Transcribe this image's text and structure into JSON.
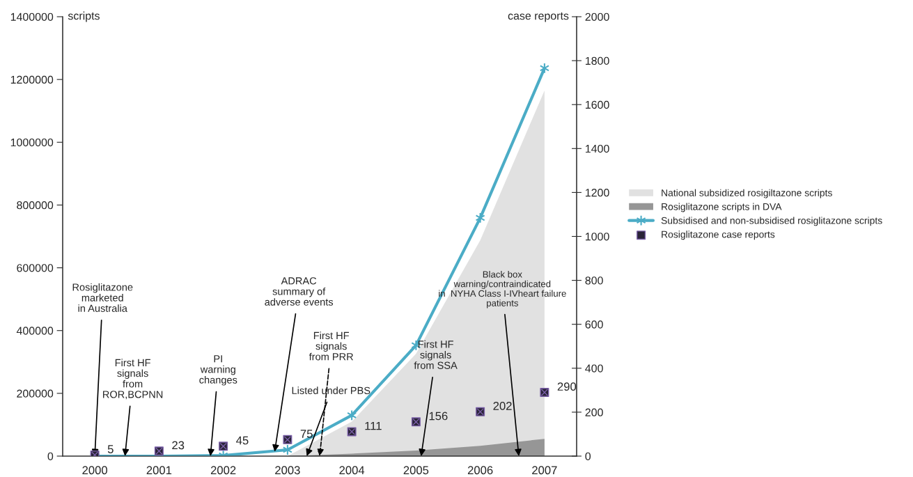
{
  "chart_data": {
    "type": "line",
    "x": [
      2000,
      2001,
      2002,
      2003,
      2004,
      2005,
      2006,
      2007
    ],
    "xlim": [
      1999.5,
      2007.5
    ],
    "xticks": [
      2000,
      2001,
      2002,
      2003,
      2004,
      2005,
      2006,
      2007
    ],
    "ylabel": "scripts",
    "y2label": "case reports",
    "ylim": [
      0,
      1400000
    ],
    "yticks": [
      0,
      200000,
      400000,
      600000,
      800000,
      1000000,
      1200000,
      1400000
    ],
    "y2lim": [
      0,
      2000
    ],
    "y2ticks": [
      0,
      200,
      400,
      600,
      800,
      1000,
      1200,
      1400,
      1600,
      1800,
      2000
    ],
    "series": [
      {
        "name": "National subsidized rosigiltazone scripts",
        "type": "area",
        "color": "#e1e1e1",
        "values": [
          null,
          null,
          null,
          0,
          110000,
          326000,
          688000,
          1165000
        ]
      },
      {
        "name": "Rosiglitazone scripts in DVA",
        "type": "area",
        "color": "#969696",
        "values": [
          null,
          null,
          null,
          0,
          8000,
          18000,
          33000,
          55000
        ]
      },
      {
        "name": "Subsidised and non-subsidised rosiglitazone scripts",
        "color": "#4bacc6",
        "marker": "cross",
        "values": [
          0,
          0,
          2000,
          20000,
          130000,
          353000,
          759000,
          1236000
        ]
      },
      {
        "name": "Rosiglitazone case reports",
        "type": "scatter",
        "axis": "y2",
        "color": "#2a2438",
        "marker": "square",
        "values": [
          5,
          23,
          45,
          75,
          111,
          156,
          202,
          290
        ],
        "value_labels": [
          "5",
          "23",
          "45",
          "75",
          "111",
          "156",
          "202",
          "290"
        ]
      }
    ],
    "annotations": [
      {
        "text": "Rosiglitazone\nmarketed\nin Australia",
        "x": 2000.0,
        "y": 0
      },
      {
        "text": "First HF\nsignals\nfrom\nROR,BCPNN",
        "x": 2000.47,
        "y": 0
      },
      {
        "text": "PI\nwarning\nchanges",
        "x": 2001.8,
        "y": 0
      },
      {
        "text": "ADRAC\nsummary of\nadverse events",
        "x": 2002.8,
        "y": 14000
      },
      {
        "text": "First HF\nsignals\nfrom PRR",
        "x": 2003.5,
        "y": 0
      },
      {
        "text": "Listed under PBS",
        "x": 2003.3,
        "y": 0
      },
      {
        "text": "First HF\nsignals\nfrom SSA",
        "x": 2005.08,
        "y": 0
      },
      {
        "text": "Black box\nwarning/contraindicated\nin  NYHA Class I-IVheart failure\npatients",
        "x": 2006.6,
        "y": 0
      }
    ],
    "legend": "right",
    "grid": false
  }
}
